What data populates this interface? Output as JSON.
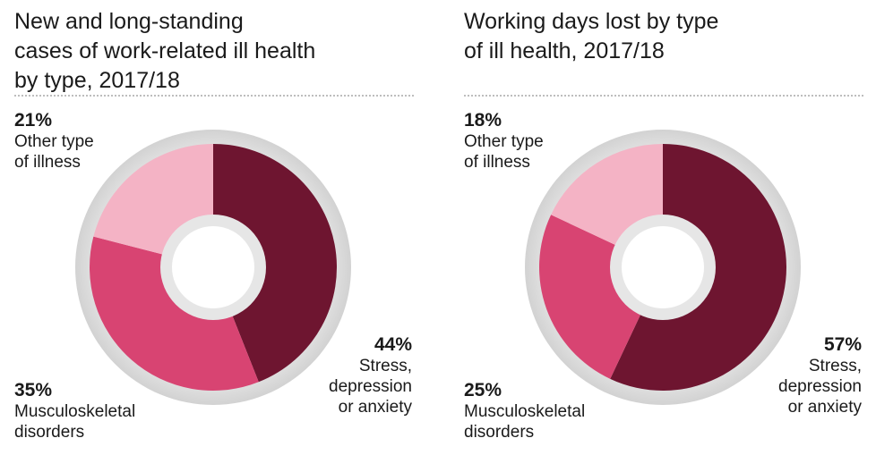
{
  "chart_data": [
    {
      "type": "pie",
      "title": "New and long-standing\ncases of work-related ill health\nby type, 2017/18",
      "series": [
        {
          "label": "Stress,\ndepression\nor anxiety",
          "value": 44,
          "display": "44%",
          "color": "#6e1530"
        },
        {
          "label": "Musculoskeletal\ndisorders",
          "value": 35,
          "display": "35%",
          "color": "#d84472"
        },
        {
          "label": "Other type\nof illness",
          "value": 21,
          "display": "21%",
          "color": "#f4b3c5"
        }
      ]
    },
    {
      "type": "pie",
      "title": "Working days lost by type\nof ill health, 2017/18",
      "series": [
        {
          "label": "Stress,\ndepression\nor anxiety",
          "value": 57,
          "display": "57%",
          "color": "#6e1530"
        },
        {
          "label": "Musculoskeletal\ndisorders",
          "value": 25,
          "display": "25%",
          "color": "#d84472"
        },
        {
          "label": "Other type\nof illness",
          "value": 18,
          "display": "18%",
          "color": "#f4b3c5"
        }
      ]
    }
  ]
}
